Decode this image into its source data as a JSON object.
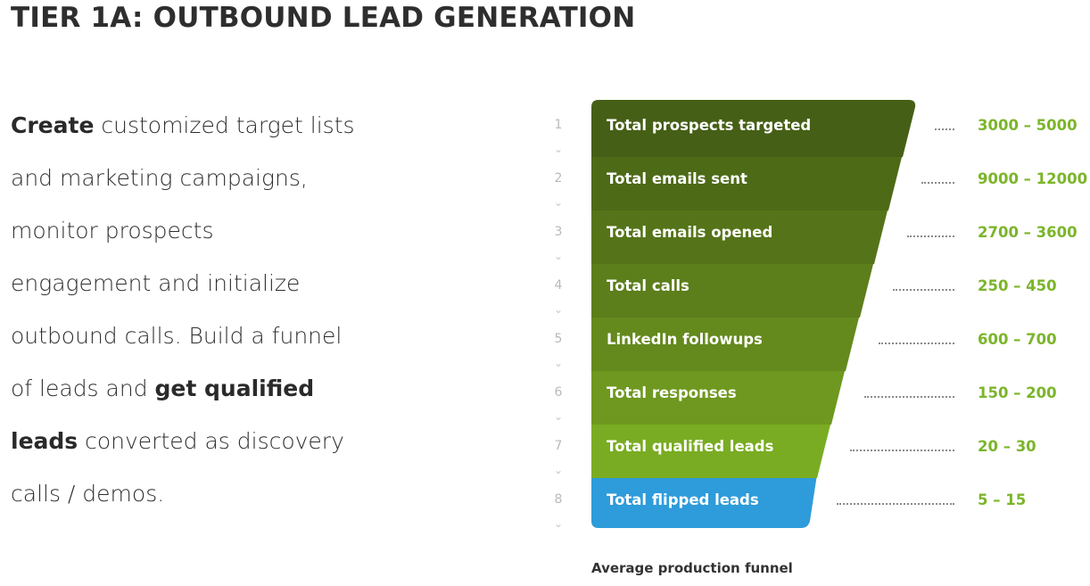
{
  "title": "TIER 1A: OUTBOUND LEAD GENERATION",
  "description": [
    [
      {
        "t": "Create",
        "b": true
      },
      {
        "t": " customized target lists",
        "b": false
      }
    ],
    [
      {
        "t": "and marketing campaigns,",
        "b": false
      }
    ],
    [
      {
        "t": "monitor prospects",
        "b": false
      }
    ],
    [
      {
        "t": "engagement and initialize",
        "b": false
      }
    ],
    [
      {
        "t": "outbound calls. Build a funnel",
        "b": false
      }
    ],
    [
      {
        "t": "of leads and ",
        "b": false
      },
      {
        "t": "get qualified",
        "b": true
      }
    ],
    [
      {
        "t": "leads",
        "b": true
      },
      {
        "t": " converted as discovery",
        "b": false
      }
    ],
    [
      {
        "t": "calls / demos.",
        "b": false
      }
    ]
  ],
  "funnel": {
    "caption": "Average production funnel",
    "chevron_glyph": "⌄",
    "steps": [
      {
        "num": "1",
        "label": "Total prospects targeted",
        "range": "3000 – 5000",
        "color": "#465f16"
      },
      {
        "num": "2",
        "label": "Total emails sent",
        "range": "9000 – 12000",
        "color": "#4d6a17"
      },
      {
        "num": "3",
        "label": "Total emails opened",
        "range": "2700 – 3600",
        "color": "#557419"
      },
      {
        "num": "4",
        "label": "Total calls",
        "range": "250 – 450",
        "color": "#5c7e1b"
      },
      {
        "num": "5",
        "label": "LinkedIn followups",
        "range": "600 – 700",
        "color": "#64891d"
      },
      {
        "num": "6",
        "label": "Total responses",
        "range": "150 – 200",
        "color": "#6e981f"
      },
      {
        "num": "7",
        "label": "Total qualified leads",
        "range": "20 – 30",
        "color": "#79ac22"
      },
      {
        "num": "8",
        "label": "Total flipped leads",
        "range": "5 – 15",
        "color": "#2e9bda"
      }
    ],
    "range_color": "#7bb52a"
  }
}
